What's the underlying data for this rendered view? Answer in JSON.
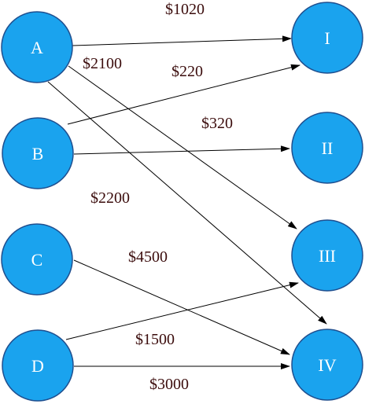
{
  "nodes": [
    {
      "id": "A",
      "label": "A"
    },
    {
      "id": "B",
      "label": "B"
    },
    {
      "id": "C",
      "label": "C"
    },
    {
      "id": "D",
      "label": "D"
    },
    {
      "id": "I",
      "label": "I"
    },
    {
      "id": "II",
      "label": "II"
    },
    {
      "id": "III",
      "label": "III"
    },
    {
      "id": "IV",
      "label": "IV"
    }
  ],
  "edges": [
    {
      "from": "A",
      "to": "I",
      "label": "$1020"
    },
    {
      "from": "A",
      "to": "III",
      "label": "$2100"
    },
    {
      "from": "A",
      "to": "IV",
      "label": "$2200"
    },
    {
      "from": "B",
      "to": "I",
      "label": "$220"
    },
    {
      "from": "B",
      "to": "II",
      "label": "$320"
    },
    {
      "from": "C",
      "to": "IV",
      "label": "$4500"
    },
    {
      "from": "D",
      "to": "III",
      "label": "$1500"
    },
    {
      "from": "D",
      "to": "IV",
      "label": "$3000"
    }
  ],
  "colors": {
    "node_fill": "#1aa3ee",
    "node_stroke": "#1f4f8f",
    "node_text": "#ffffff",
    "edge": "#000000",
    "edge_label": "#3b0c0c"
  }
}
